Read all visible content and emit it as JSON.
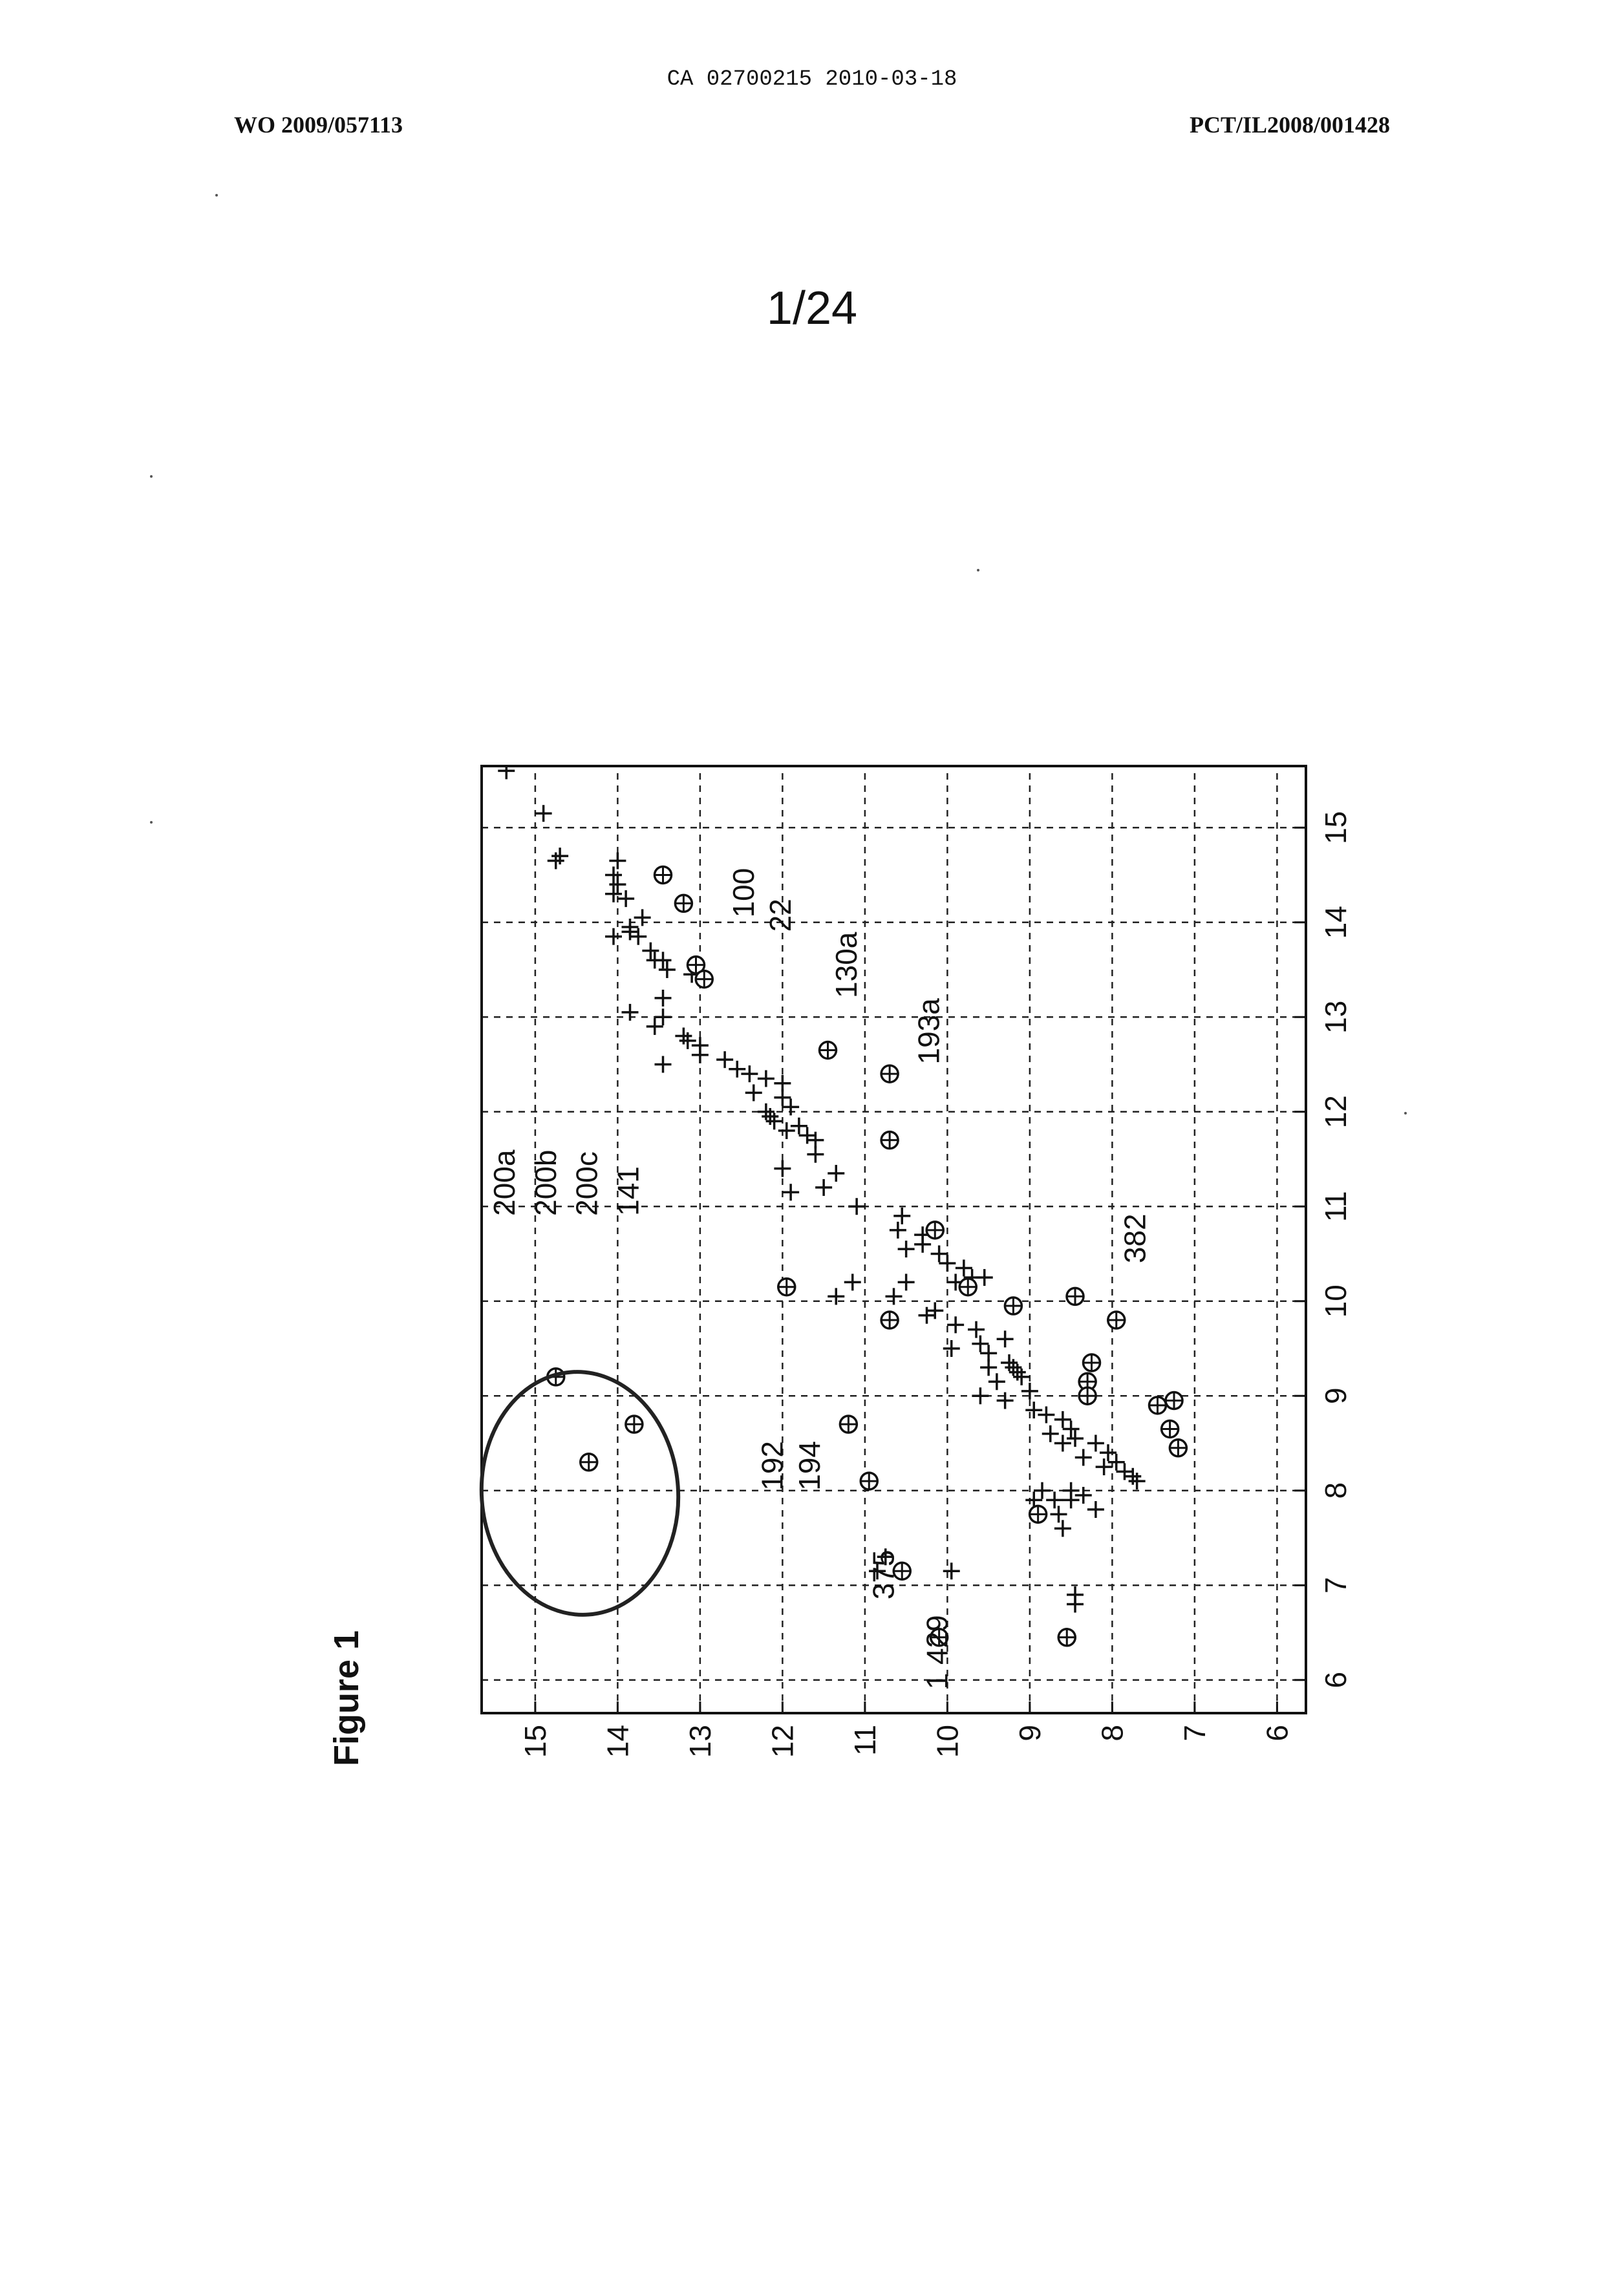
{
  "header": {
    "ca_line": "CA 02700215 2010-03-18",
    "wo_number": "WO 2009/057113",
    "pct_number": "PCT/IL2008/001428"
  },
  "sheet_number": "1/24",
  "figure_label": "Figure 1",
  "chart_data": {
    "type": "scatter",
    "title": "",
    "xlabel": "",
    "ylabel": "",
    "xlim": [
      5.65,
      15.65
    ],
    "ylim": [
      5.65,
      15.65
    ],
    "grid": true,
    "x_ticks": [
      "6",
      "7",
      "8",
      "9",
      "10",
      "11",
      "12",
      "13",
      "14",
      "15"
    ],
    "y_ticks": [
      "6",
      "7",
      "8",
      "9",
      "10",
      "11",
      "12",
      "13",
      "14",
      "15"
    ],
    "series": [
      {
        "marker": "plus",
        "points": [
          [
            15.6,
            15.35
          ],
          [
            15.8,
            15.2
          ],
          [
            15.15,
            14.9
          ],
          [
            14.7,
            14.7
          ],
          [
            14.65,
            14.75
          ],
          [
            14.5,
            14.05
          ],
          [
            14.65,
            14.0
          ],
          [
            14.4,
            14.0
          ],
          [
            14.3,
            14.05
          ],
          [
            14.25,
            13.9
          ],
          [
            14.05,
            13.7
          ],
          [
            13.95,
            13.85
          ],
          [
            13.85,
            13.75
          ],
          [
            13.85,
            14.05
          ],
          [
            13.9,
            13.85
          ],
          [
            13.7,
            13.6
          ],
          [
            13.6,
            13.55
          ],
          [
            13.6,
            13.45
          ],
          [
            13.45,
            13.1
          ],
          [
            13.5,
            13.4
          ],
          [
            13.2,
            13.45
          ],
          [
            13.05,
            13.85
          ],
          [
            13.0,
            13.45
          ],
          [
            12.9,
            13.55
          ],
          [
            12.8,
            13.2
          ],
          [
            12.75,
            13.15
          ],
          [
            12.7,
            13.0
          ],
          [
            12.6,
            13.0
          ],
          [
            12.55,
            12.7
          ],
          [
            12.5,
            13.45
          ],
          [
            12.45,
            12.55
          ],
          [
            12.4,
            12.4
          ],
          [
            12.35,
            12.2
          ],
          [
            12.3,
            12.0
          ],
          [
            12.2,
            12.35
          ],
          [
            12.15,
            12.0
          ],
          [
            12.05,
            11.9
          ],
          [
            12.0,
            12.2
          ],
          [
            11.95,
            12.15
          ],
          [
            11.9,
            12.1
          ],
          [
            11.85,
            11.8
          ],
          [
            11.8,
            11.95
          ],
          [
            11.75,
            11.7
          ],
          [
            11.7,
            11.6
          ],
          [
            11.55,
            11.6
          ],
          [
            11.4,
            12.0
          ],
          [
            11.35,
            11.35
          ],
          [
            11.2,
            11.5
          ],
          [
            11.15,
            11.9
          ],
          [
            11.0,
            11.1
          ],
          [
            10.9,
            10.55
          ],
          [
            10.75,
            10.6
          ],
          [
            10.7,
            10.3
          ],
          [
            10.6,
            10.3
          ],
          [
            10.55,
            10.5
          ],
          [
            10.5,
            10.1
          ],
          [
            10.4,
            10.0
          ],
          [
            10.35,
            9.8
          ],
          [
            10.25,
            9.7
          ],
          [
            10.25,
            9.55
          ],
          [
            10.2,
            9.9
          ],
          [
            10.2,
            10.5
          ],
          [
            10.2,
            11.15
          ],
          [
            10.05,
            11.35
          ],
          [
            10.05,
            10.65
          ],
          [
            9.9,
            10.15
          ],
          [
            9.85,
            10.25
          ],
          [
            9.75,
            9.9
          ],
          [
            9.7,
            9.65
          ],
          [
            9.6,
            9.3
          ],
          [
            9.55,
            9.6
          ],
          [
            9.5,
            9.95
          ],
          [
            9.45,
            9.5
          ],
          [
            9.35,
            9.25
          ],
          [
            9.3,
            9.2
          ],
          [
            9.3,
            9.5
          ],
          [
            9.25,
            9.15
          ],
          [
            9.2,
            9.1
          ],
          [
            9.15,
            9.4
          ],
          [
            9.05,
            9.0
          ],
          [
            9.0,
            9.6
          ],
          [
            8.95,
            9.3
          ],
          [
            8.85,
            8.95
          ],
          [
            8.8,
            8.8
          ],
          [
            8.75,
            8.6
          ],
          [
            8.65,
            8.5
          ],
          [
            8.6,
            8.75
          ],
          [
            8.55,
            8.45
          ],
          [
            8.5,
            8.6
          ],
          [
            8.5,
            8.2
          ],
          [
            8.4,
            8.05
          ],
          [
            8.35,
            8.35
          ],
          [
            8.3,
            7.95
          ],
          [
            8.25,
            8.1
          ],
          [
            8.2,
            7.85
          ],
          [
            8.15,
            7.75
          ],
          [
            8.1,
            7.7
          ],
          [
            8.0,
            8.5
          ],
          [
            7.95,
            8.35
          ],
          [
            7.9,
            8.95
          ],
          [
            7.9,
            8.7
          ],
          [
            7.8,
            8.2
          ],
          [
            7.6,
            8.6
          ],
          [
            7.15,
            10.85
          ],
          [
            7.15,
            9.95
          ],
          [
            7.3,
            10.75
          ],
          [
            6.9,
            8.45
          ],
          [
            6.8,
            8.45
          ],
          [
            8.0,
            8.85
          ],
          [
            7.75,
            8.65
          ],
          [
            7.9,
            8.5
          ]
        ]
      },
      {
        "marker": "circle-plus",
        "points": [
          [
            14.5,
            13.45
          ],
          [
            14.2,
            13.2
          ],
          [
            13.55,
            13.05
          ],
          [
            13.4,
            12.95
          ],
          [
            12.65,
            11.45
          ],
          [
            12.4,
            10.7
          ],
          [
            11.7,
            10.7
          ],
          [
            10.15,
            11.95
          ],
          [
            10.75,
            10.15
          ],
          [
            10.15,
            9.75
          ],
          [
            9.8,
            10.7
          ],
          [
            9.95,
            9.2
          ],
          [
            9.2,
            14.75
          ],
          [
            8.3,
            14.35
          ],
          [
            8.7,
            13.8
          ],
          [
            8.7,
            11.2
          ],
          [
            8.1,
            10.95
          ],
          [
            7.75,
            8.9
          ],
          [
            7.15,
            10.55
          ],
          [
            6.45,
            10.1
          ],
          [
            6.45,
            8.55
          ],
          [
            9.8,
            7.95
          ],
          [
            10.05,
            8.45
          ],
          [
            9.35,
            8.25
          ],
          [
            9.15,
            8.3
          ],
          [
            9.0,
            8.3
          ],
          [
            8.9,
            7.45
          ],
          [
            8.65,
            7.3
          ],
          [
            8.45,
            7.2
          ],
          [
            8.95,
            7.25
          ]
        ]
      }
    ],
    "annotations": [
      {
        "text": "200a",
        "x": 10.9,
        "y": 15.25
      },
      {
        "text": "200b",
        "x": 10.9,
        "y": 14.75
      },
      {
        "text": "200c",
        "x": 10.9,
        "y": 14.25
      },
      {
        "text": "141",
        "x": 10.9,
        "y": 13.75
      },
      {
        "text": "100",
        "x": 14.05,
        "y": 12.35
      },
      {
        "text": "22",
        "x": 13.9,
        "y": 11.9
      },
      {
        "text": "130a",
        "x": 13.2,
        "y": 11.1
      },
      {
        "text": "193a",
        "x": 12.5,
        "y": 10.1
      },
      {
        "text": "192",
        "x": 8.0,
        "y": 12.0
      },
      {
        "text": "194",
        "x": 8.0,
        "y": 11.55
      },
      {
        "text": "375",
        "x": 6.85,
        "y": 10.65
      },
      {
        "text": "1 429",
        "x": 5.9,
        "y": 10.0
      },
      {
        "text": "382",
        "x": 10.4,
        "y": 7.6
      }
    ],
    "highlight": {
      "shape": "ellipse",
      "encloses": [
        "200a",
        "200b",
        "200c",
        "141"
      ]
    }
  }
}
